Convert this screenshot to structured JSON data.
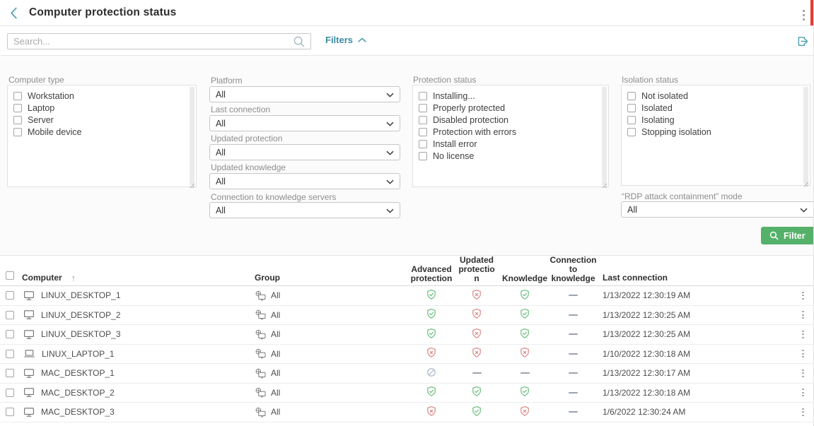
{
  "colors": {
    "accent_teal": "#4d9fb2",
    "filters_link": "#3d8ba3",
    "filter_button_green": "#55b169",
    "shield_ok_green": "#68be7a",
    "shield_error_red": "#db8585",
    "disabled_gray": "#a9b4c1",
    "alert_bar_red": "#e8382b"
  },
  "header": {
    "title": "Computer protection status"
  },
  "toolbar": {
    "search_placeholder": "Search...",
    "filters_label": "Filters"
  },
  "filters": {
    "computer_type": {
      "label": "Computer type",
      "options": [
        "Workstation",
        "Laptop",
        "Server",
        "Mobile device"
      ]
    },
    "platform": {
      "label": "Platform",
      "value": "All"
    },
    "last_connection": {
      "label": "Last connection",
      "value": "All"
    },
    "updated_protection": {
      "label": "Updated protection",
      "value": "All"
    },
    "updated_knowledge": {
      "label": "Updated knowledge",
      "value": "All"
    },
    "connection_to_knowledge_servers": {
      "label": "Connection to knowledge servers",
      "value": "All"
    },
    "protection_status": {
      "label": "Protection status",
      "options": [
        "Installing...",
        "Properly protected",
        "Disabled protection",
        "Protection with errors",
        "Install error",
        "No license"
      ]
    },
    "isolation_status": {
      "label": "Isolation status",
      "options": [
        "Not isolated",
        "Isolated",
        "Isolating",
        "Stopping isolation"
      ]
    },
    "rdp_mode": {
      "label": "“RDP attack containment” mode",
      "value": "All"
    },
    "filter_button_label": "Filter"
  },
  "table": {
    "headers": {
      "computer": "Computer",
      "group": "Group",
      "advanced_protection": "Advanced\nprotection",
      "updated_protection": "Updated\nprotectio\nn",
      "knowledge": "Knowledge",
      "connection_to_knowledge": "Connection\nto\nknowledge",
      "last_connection": "Last connection"
    },
    "rows": [
      {
        "name": "LINUX_DESKTOP_1",
        "device": "desktop",
        "group": "All",
        "advanced_protection": "ok",
        "updated_protection": "error",
        "knowledge": "ok",
        "connection_to_knowledge": "none",
        "last_connection": "1/13/2022 12:30:19 AM"
      },
      {
        "name": "LINUX_DESKTOP_2",
        "device": "desktop",
        "group": "All",
        "advanced_protection": "ok",
        "updated_protection": "error",
        "knowledge": "ok",
        "connection_to_knowledge": "none",
        "last_connection": "1/13/2022 12:30:25 AM"
      },
      {
        "name": "LINUX_DESKTOP_3",
        "device": "desktop",
        "group": "All",
        "advanced_protection": "ok",
        "updated_protection": "error",
        "knowledge": "ok",
        "connection_to_knowledge": "none",
        "last_connection": "1/13/2022 12:30:25 AM"
      },
      {
        "name": "LINUX_LAPTOP_1",
        "device": "laptop",
        "group": "All",
        "advanced_protection": "error",
        "updated_protection": "error",
        "knowledge": "error",
        "connection_to_knowledge": "none",
        "last_connection": "1/10/2022 12:30:18 AM"
      },
      {
        "name": "MAC_DESKTOP_1",
        "device": "desktop",
        "group": "All",
        "advanced_protection": "disabled",
        "updated_protection": "none",
        "knowledge": "none",
        "connection_to_knowledge": "none",
        "last_connection": "1/13/2022 12:30:17 AM"
      },
      {
        "name": "MAC_DESKTOP_2",
        "device": "desktop",
        "group": "All",
        "advanced_protection": "ok",
        "updated_protection": "ok",
        "knowledge": "ok",
        "connection_to_knowledge": "none",
        "last_connection": "1/13/2022 12:30:18 AM"
      },
      {
        "name": "MAC_DESKTOP_3",
        "device": "desktop",
        "group": "All",
        "advanced_protection": "error",
        "updated_protection": "ok",
        "knowledge": "error",
        "connection_to_knowledge": "none",
        "last_connection": "1/6/2022 12:30:24 AM"
      }
    ]
  }
}
